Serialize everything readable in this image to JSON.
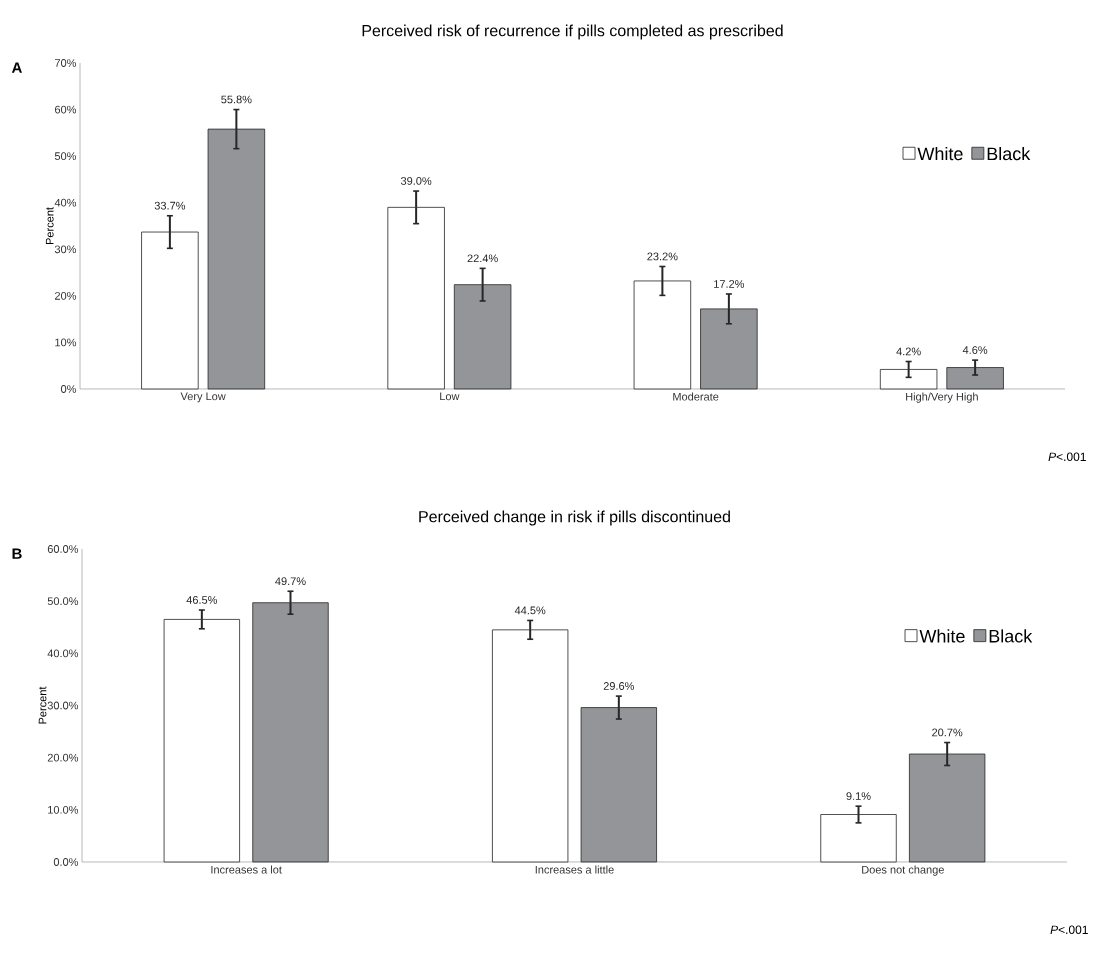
{
  "chart_data": [
    {
      "type": "bar",
      "title": "Perceived risk of recurrence if pills completed as prescribed",
      "ylabel": "Percent",
      "categories": [
        "Very Low",
        "Low",
        "Moderate",
        "High/Very High"
      ],
      "series": [
        {
          "name": "White",
          "color": "#ffffff",
          "values": [
            33.7,
            39.0,
            23.2,
            4.2
          ],
          "errors": [
            3.5,
            3.5,
            3.1,
            1.7
          ],
          "value_labels": [
            "33.7%",
            "39.0%",
            "23.2%",
            "4.2%"
          ]
        },
        {
          "name": "Black",
          "color": "#939598",
          "values": [
            55.8,
            22.4,
            17.2,
            4.6
          ],
          "errors": [
            4.2,
            3.5,
            3.2,
            1.6
          ],
          "value_labels": [
            "55.8%",
            "22.4%",
            "17.2%",
            "4.6%"
          ]
        }
      ],
      "ylim": [
        0,
        70
      ],
      "yticks": [
        {
          "value": 0,
          "label": "0%"
        },
        {
          "value": 10,
          "label": "10%"
        },
        {
          "value": 20,
          "label": "20%"
        },
        {
          "value": 30,
          "label": "30%"
        },
        {
          "value": 40,
          "label": "40%"
        },
        {
          "value": 50,
          "label": "50%"
        },
        {
          "value": 60,
          "label": "60%"
        },
        {
          "value": 70,
          "label": "70%"
        }
      ],
      "grid": false,
      "legend": "right",
      "annotations": [
        "A",
        "*P*<.001"
      ]
    },
    {
      "type": "bar",
      "title": "Perceived change in risk if pills discontinued",
      "ylabel": "Percent",
      "categories": [
        "Increases a lot",
        "Increases a little",
        "Does not change"
      ],
      "series": [
        {
          "name": "White",
          "color": "#ffffff",
          "values": [
            46.5,
            44.5,
            9.1
          ],
          "errors": [
            1.8,
            1.8,
            1.6
          ],
          "value_labels": [
            "46.5%",
            "44.5%",
            "9.1%"
          ]
        },
        {
          "name": "Black",
          "color": "#939598",
          "values": [
            49.7,
            29.6,
            20.7
          ],
          "errors": [
            2.2,
            2.2,
            2.2
          ],
          "value_labels": [
            "49.7%",
            "29.6%",
            "20.7%"
          ]
        }
      ],
      "ylim": [
        0,
        60
      ],
      "yticks": [
        {
          "value": 0,
          "label": "0.0%"
        },
        {
          "value": 10,
          "label": "10.0%"
        },
        {
          "value": 20,
          "label": "20.0%"
        },
        {
          "value": 30,
          "label": "30.0%"
        },
        {
          "value": 40,
          "label": "40.0%"
        },
        {
          "value": 50,
          "label": "50.0%"
        },
        {
          "value": 60,
          "label": "60.0%"
        }
      ],
      "grid": false,
      "legend": "right",
      "annotations": [
        "B",
        "*P*<.001"
      ]
    }
  ]
}
